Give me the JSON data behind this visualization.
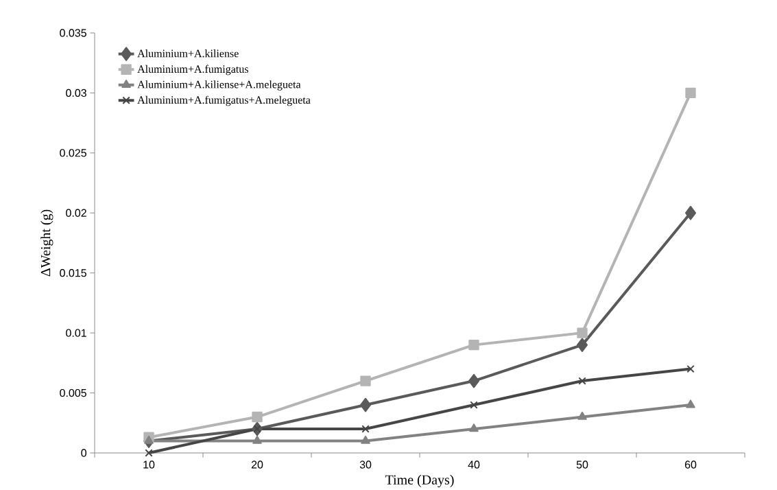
{
  "chart_data": {
    "type": "line",
    "xlabel": "Time (Days)",
    "ylabel": "ΔWeight (g)",
    "categories": [
      "10",
      "20",
      "30",
      "40",
      "50",
      "60"
    ],
    "ylim": [
      0,
      0.035
    ],
    "yticks": [
      0,
      0.005,
      0.01,
      0.015,
      0.02,
      0.025,
      0.03,
      0.035
    ],
    "grid": false,
    "legend": "top left",
    "line_style": "solid",
    "series": [
      {
        "name": "Aluminium+A.kiliense",
        "color": "#5a5a5a",
        "marker": "diamond",
        "values": [
          0.001,
          0.002,
          0.004,
          0.006,
          0.009,
          0.02
        ]
      },
      {
        "name": "Aluminium+A.fumigatus",
        "color": "#b4b4b4",
        "marker": "square",
        "values": [
          0.0013,
          0.003,
          0.006,
          0.009,
          0.01,
          0.03
        ]
      },
      {
        "name": "Aluminium+A.kiliense+A.melegueta",
        "color": "#828282",
        "marker": "triangle",
        "values": [
          0.001,
          0.001,
          0.001,
          0.002,
          0.003,
          0.004
        ]
      },
      {
        "name": "Aluminium+A.fumigatus+A.melegueta",
        "color": "#464646",
        "marker": "cross",
        "values": [
          0,
          0.002,
          0.002,
          0.004,
          0.006,
          0.007
        ]
      }
    ]
  }
}
